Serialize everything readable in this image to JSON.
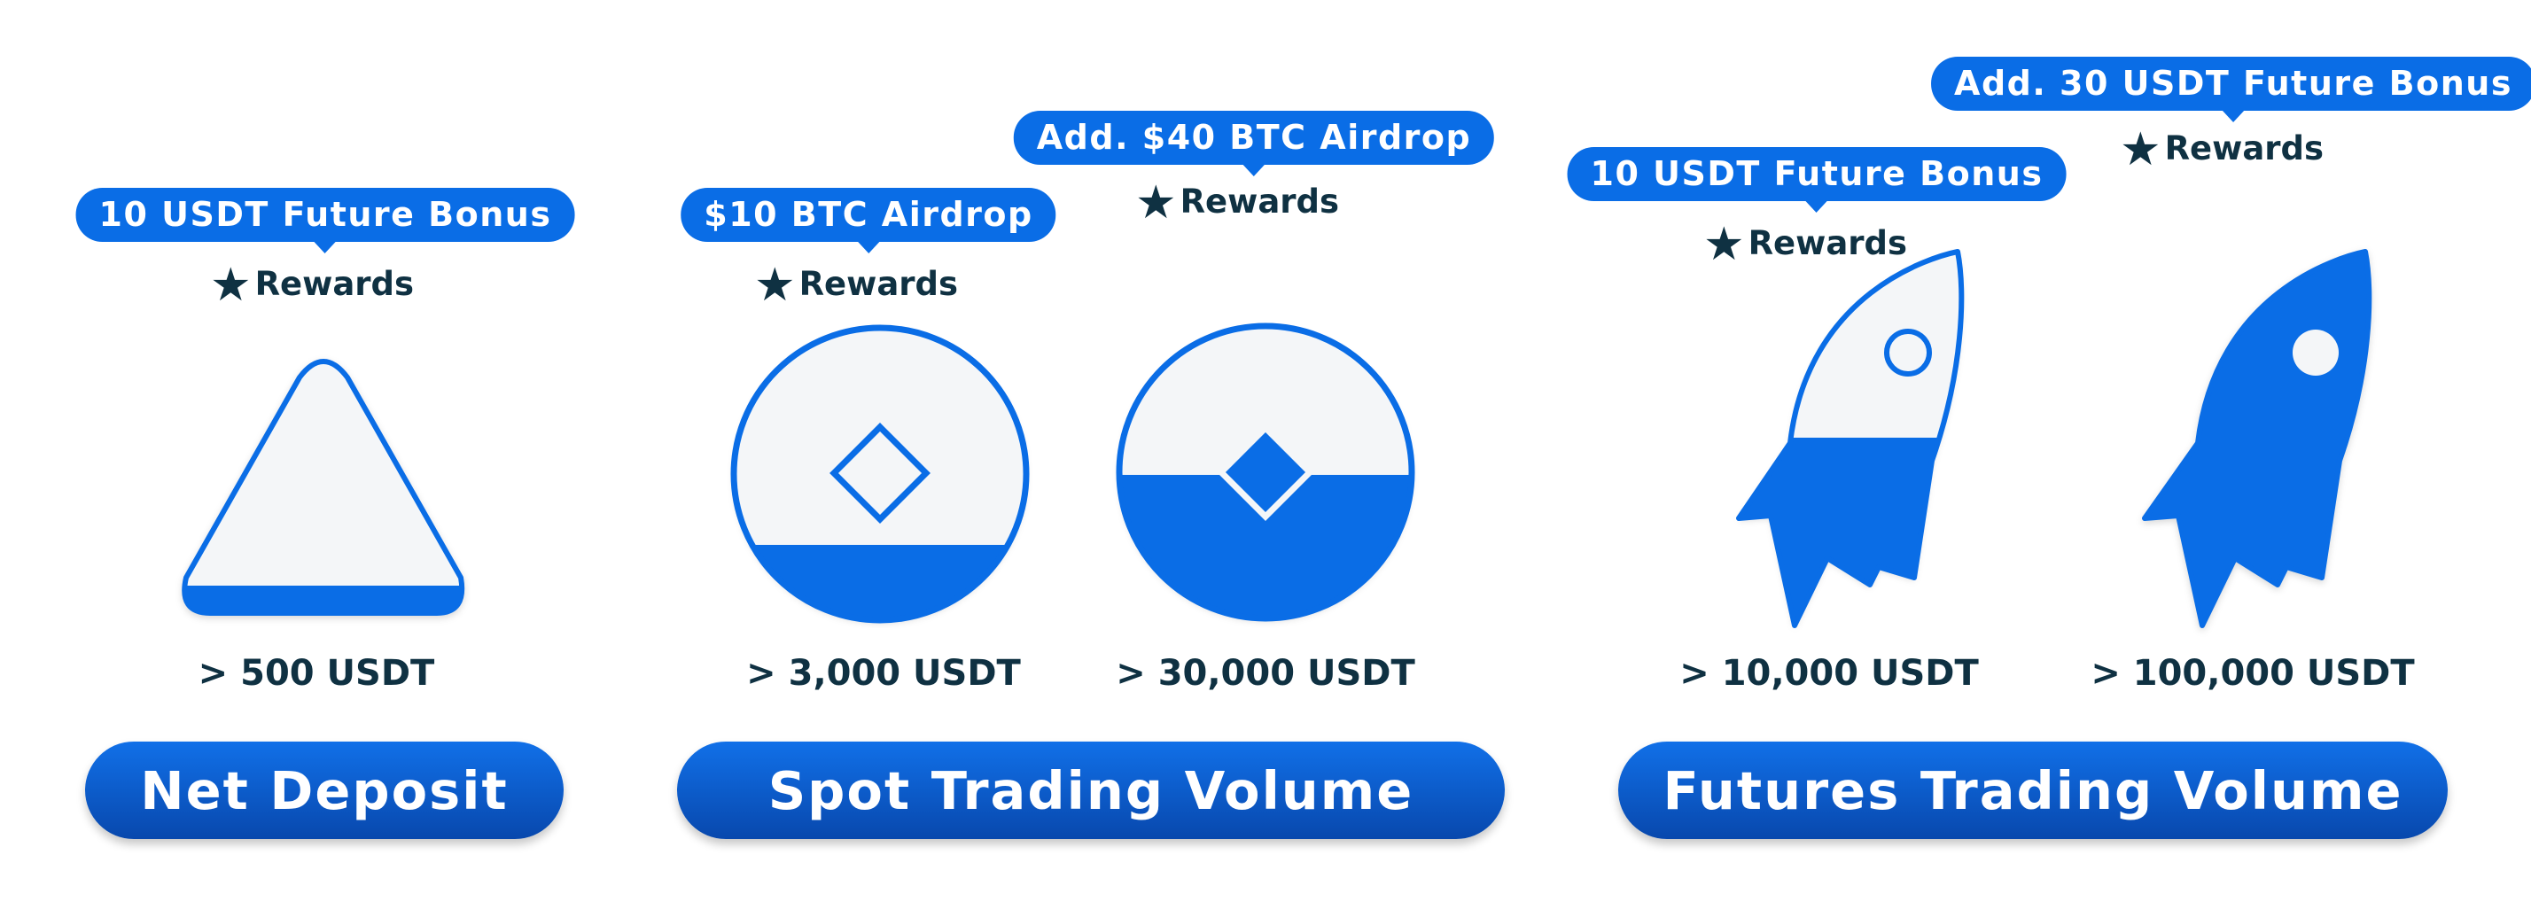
{
  "categories": {
    "net_deposit": "Net Deposit",
    "spot": "Spot Trading Volume",
    "futures": "Futures Trading Volume"
  },
  "rewards_label": "Rewards",
  "star_glyph": "★",
  "tiers": [
    {
      "amount": "> 500 USDT",
      "bonus": "10 USDT Future Bonus",
      "icon": "triangle-icon",
      "fill_level": 0.12
    },
    {
      "amount": "> 3,000 USDT",
      "bonus": "$10 BTC Airdrop",
      "icon": "coin-icon",
      "fill_level": 0.25
    },
    {
      "amount": "> 30,000 USDT",
      "bonus": "Add. $40 BTC Airdrop",
      "icon": "coin-icon",
      "fill_level": 0.5
    },
    {
      "amount": "> 10,000 USDT",
      "bonus": "10 USDT Future Bonus",
      "icon": "rocket-icon",
      "fill_level": 0.5
    },
    {
      "amount": "> 100,000 USDT",
      "bonus": "Add. 30 USDT Future Bonus",
      "icon": "rocket-icon",
      "fill_level": 1.0
    }
  ],
  "colors": {
    "accent": "#0a6de6",
    "dark_text": "#0f3142",
    "icon_bg": "#f4f6f8",
    "pill_gradient_end": "#0848ad"
  }
}
